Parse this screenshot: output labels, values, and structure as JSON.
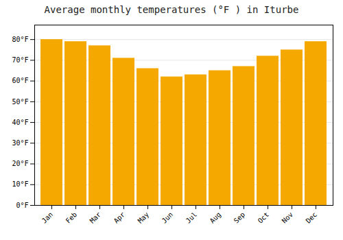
{
  "chart_data": {
    "type": "bar",
    "title": "Average monthly temperatures (°F ) in Iturbe",
    "categories": [
      "Jan",
      "Feb",
      "Mar",
      "Apr",
      "May",
      "Jun",
      "Jul",
      "Aug",
      "Sep",
      "Oct",
      "Nov",
      "Dec"
    ],
    "values": [
      80,
      79,
      77,
      71,
      66,
      62,
      63,
      65,
      67,
      72,
      75,
      79
    ],
    "color": "#F5A800",
    "ylim": [
      0,
      87
    ],
    "yticks": [
      {
        "value": 0,
        "label": "0°F"
      },
      {
        "value": 10,
        "label": "10°F"
      },
      {
        "value": 20,
        "label": "20°F"
      },
      {
        "value": 30,
        "label": "30°F"
      },
      {
        "value": 40,
        "label": "40°F"
      },
      {
        "value": 50,
        "label": "50°F"
      },
      {
        "value": 60,
        "label": "60°F"
      },
      {
        "value": 70,
        "label": "70°F"
      },
      {
        "value": 80,
        "label": "80°F"
      }
    ],
    "grid": true
  }
}
